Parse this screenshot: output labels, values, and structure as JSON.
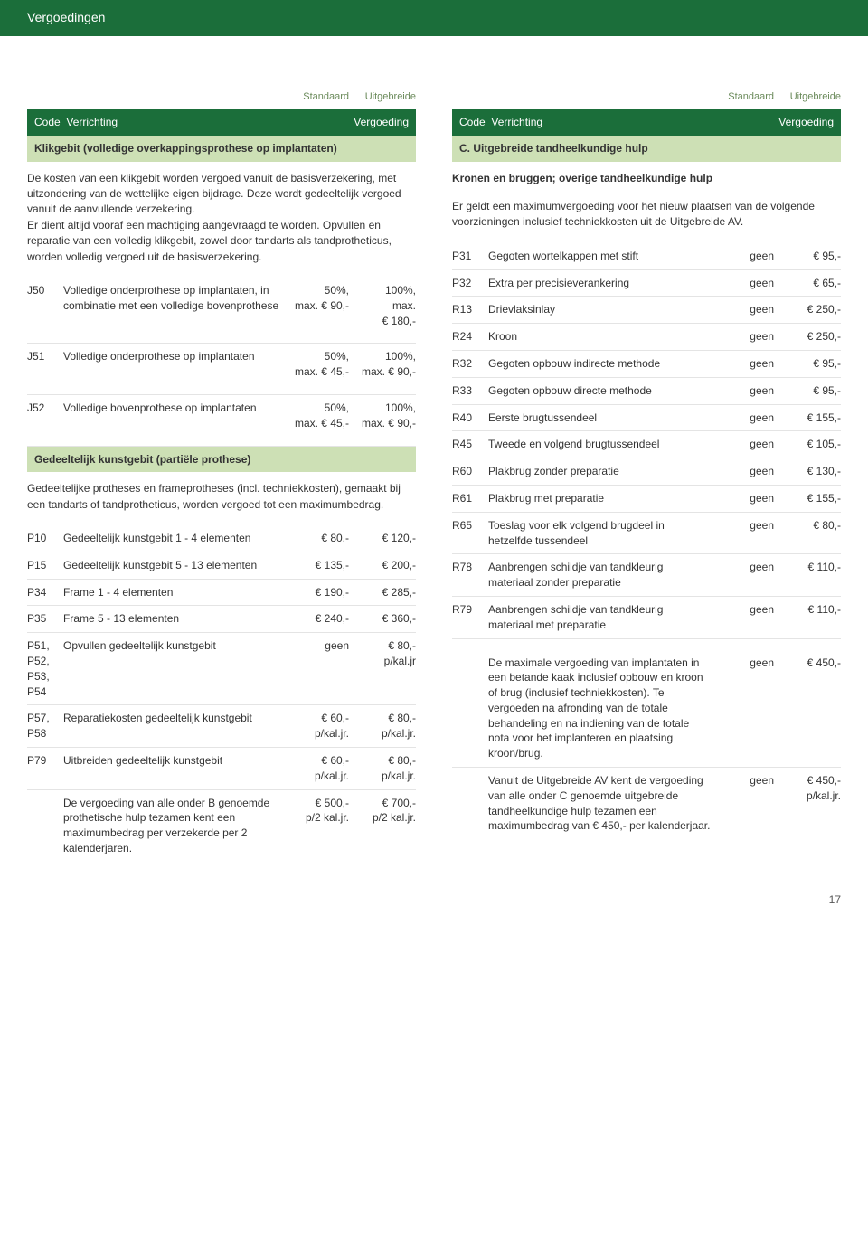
{
  "header": "Vergoedingen",
  "pagenum": "17",
  "cols": {
    "stdLabel": "Standaard",
    "uitLabel": "Uitgebreide",
    "codeLabel": "Code",
    "verLabel": "Verrichting",
    "vgLabel": "Vergoeding"
  },
  "left": {
    "section1Title": "Klikgebit (volledige overkappingsprothese op implantaten)",
    "para1": "De kosten van een klikgebit worden vergoed vanuit de basisverzekering, met uitzondering van de wettelijke eigen bijdrage. Deze wordt gedeeltelijk vergoed vanuit de aanvullende verzekering.",
    "para2": "Er dient altijd vooraf een machtiging aangevraagd te worden. Opvullen en reparatie van een volledig klikgebit, zowel door tandarts als tandprotheticus, worden volledig vergoed uit de basisverzekering.",
    "rows1": [
      {
        "code": "J50",
        "desc": "Volledige onderprothese op implantaten, in combinatie met een volledige bovenprothese",
        "v1": "50%,\nmax. € 90,-",
        "v2": "100%,\nmax.\n€ 180,-"
      },
      {
        "code": "J51",
        "desc": "Volledige onderprothese op implantaten",
        "v1": "50%,\nmax. € 45,-",
        "v2": "100%,\nmax. € 90,-"
      },
      {
        "code": "J52",
        "desc": "Volledige bovenprothese op implantaten",
        "v1": "50%,\nmax. € 45,-",
        "v2": "100%,\nmax. € 90,-"
      }
    ],
    "section2Title": "Gedeeltelijk kunstgebit (partiële prothese)",
    "para3": "Gedeeltelijke protheses en frameprotheses (incl. techniekkosten), gemaakt bij een tandarts of tandprotheticus, worden vergoed tot een maximumbedrag.",
    "rows2": [
      {
        "code": "P10",
        "desc": "Gedeeltelijk kunstgebit 1 - 4 elementen",
        "v1": "€ 80,-",
        "v2": "€ 120,-"
      },
      {
        "code": "P15",
        "desc": "Gedeeltelijk kunstgebit 5 - 13 elementen",
        "v1": "€ 135,-",
        "v2": "€ 200,-"
      },
      {
        "code": "P34",
        "desc": "Frame 1 - 4 elementen",
        "v1": "€ 190,-",
        "v2": "€ 285,-"
      },
      {
        "code": "P35",
        "desc": "Frame 5 - 13 elementen",
        "v1": "€ 240,-",
        "v2": "€ 360,-"
      },
      {
        "code": "P51, P52, P53, P54",
        "desc": "Opvullen gedeeltelijk kunstgebit",
        "v1": "geen",
        "v2": "€ 80,-\np/kal.jr"
      },
      {
        "code": "P57, P58",
        "desc": "Reparatiekosten gedeeltelijk kunstgebit",
        "v1": "€ 60,-\np/kal.jr.",
        "v2": "€ 80,-\np/kal.jr."
      },
      {
        "code": "P79",
        "desc": "Uitbreiden gedeeltelijk kunstgebit",
        "v1": "€ 60,-\np/kal.jr.",
        "v2": "€ 80,-\np/kal.jr."
      }
    ],
    "footerRow": {
      "desc": "De vergoeding van alle onder B genoemde prothetische hulp tezamen kent een maximumbedrag per verzekerde per 2 kalenderjaren.",
      "v1": "€ 500,-\np/2 kal.jr.",
      "v2": "€ 700,-\np/2 kal.jr."
    }
  },
  "right": {
    "section1Title": "C. Uitgebreide tandheelkundige hulp",
    "subTitle": "Kronen en bruggen; overige tandheelkundige hulp",
    "para1": "Er geldt een maximumvergoeding voor het nieuw plaatsen van de volgende voorzieningen inclusief techniekkosten uit de Uitgebreide AV.",
    "rows": [
      {
        "code": "P31",
        "desc": "Gegoten wortelkappen met stift",
        "v1": "geen",
        "v2": "€ 95,-"
      },
      {
        "code": "P32",
        "desc": "Extra per precisieverankering",
        "v1": "geen",
        "v2": "€ 65,-"
      },
      {
        "code": "R13",
        "desc": "Drievlaksinlay",
        "v1": "geen",
        "v2": "€ 250,-"
      },
      {
        "code": "R24",
        "desc": "Kroon",
        "v1": "geen",
        "v2": "€ 250,-"
      },
      {
        "code": "R32",
        "desc": "Gegoten opbouw indirecte methode",
        "v1": "geen",
        "v2": "€ 95,-"
      },
      {
        "code": "R33",
        "desc": "Gegoten opbouw directe methode",
        "v1": "geen",
        "v2": "€ 95,-"
      },
      {
        "code": "R40",
        "desc": "Eerste brugtussendeel",
        "v1": "geen",
        "v2": "€ 155,-"
      },
      {
        "code": "R45",
        "desc": "Tweede en volgend brugtussendeel",
        "v1": "geen",
        "v2": "€ 105,-"
      },
      {
        "code": "R60",
        "desc": "Plakbrug zonder preparatie",
        "v1": "geen",
        "v2": "€ 130,-"
      },
      {
        "code": "R61",
        "desc": "Plakbrug met preparatie",
        "v1": "geen",
        "v2": "€ 155,-"
      },
      {
        "code": "R65",
        "desc": "Toeslag voor elk volgend brugdeel in hetzelfde tussendeel",
        "v1": "geen",
        "v2": "€ 80,-"
      },
      {
        "code": "R78",
        "desc": "Aanbrengen schildje van tandkleurig materiaal zonder preparatie",
        "v1": "geen",
        "v2": "€ 110,-"
      },
      {
        "code": "R79",
        "desc": "Aanbrengen schildje van tandkleurig materiaal met preparatie",
        "v1": "geen",
        "v2": "€ 110,-"
      }
    ],
    "footerRow1": {
      "desc": "De maximale vergoeding van implantaten in een betande kaak inclusief opbouw en kroon of brug (inclusief techniekkosten). Te vergoeden na afronding van de totale behandeling en na indiening van de totale nota voor het implanteren en plaatsing kroon/brug.",
      "v1": "geen",
      "v2": "€ 450,-"
    },
    "footerRow2": {
      "desc": "Vanuit de Uitgebreide AV kent de vergoeding van alle onder C genoemde uitgebreide tandheelkundige hulp tezamen een maximumbedrag van € 450,- per kalenderjaar.",
      "v1": "geen",
      "v2": "€ 450,-\np/kal.jr."
    }
  }
}
